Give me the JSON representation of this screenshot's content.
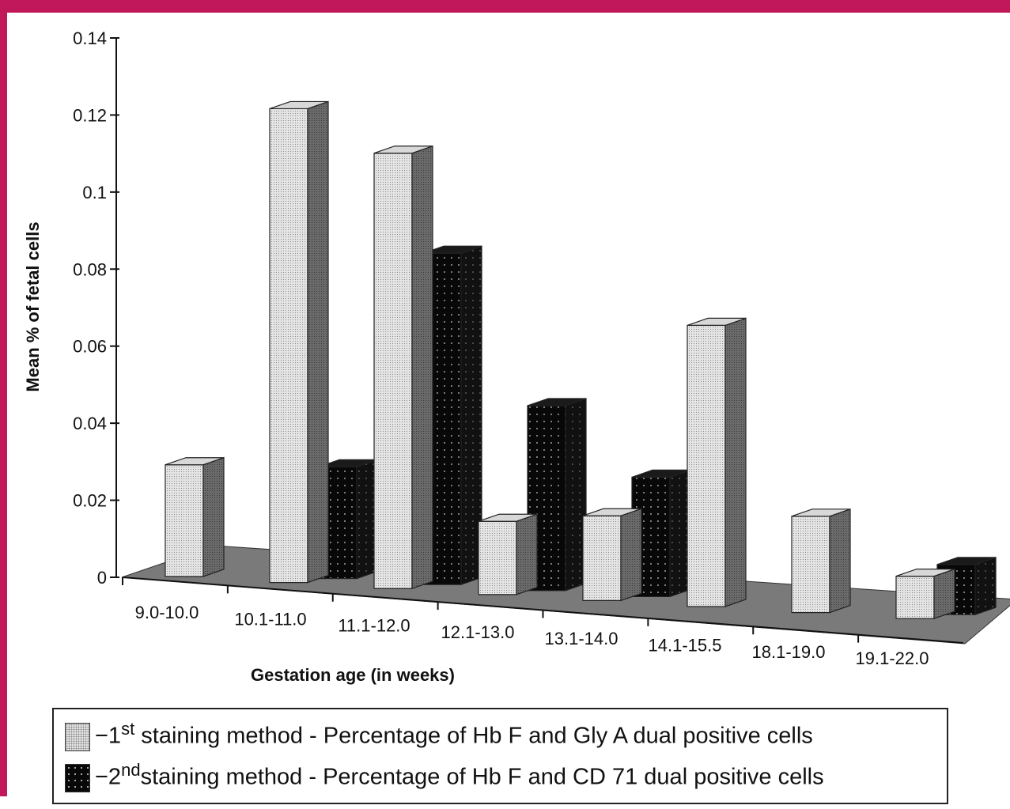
{
  "chart_data": {
    "type": "bar",
    "title": "",
    "xlabel": "Gestation age (in weeks)",
    "ylabel": "Mean % of fetal cells",
    "ylim": [
      0,
      0.14
    ],
    "yticks": [
      "0",
      "0.02",
      "0.04",
      "0.06",
      "0.08",
      "0.1",
      "0.12",
      "0.14"
    ],
    "categories": [
      "9.0-10.0",
      "10.1-11.0",
      "11.1-12.0",
      "12.1-13.0",
      "13.1-14.0",
      "14.1-15.5",
      "18.1-19.0",
      "19.1-22.0"
    ],
    "series": [
      {
        "name": "1st staining method - Percentage of Hb F and Gly A dual positive cells",
        "values": [
          0.029,
          0.123,
          0.113,
          0.019,
          0.022,
          0.073,
          0.025,
          0.011
        ]
      },
      {
        "name": "2nd staining method - Percentage of Hb F and CD 71 dual positive cells",
        "values": [
          0,
          0.029,
          0.086,
          0.048,
          0.031,
          0,
          0,
          0.013
        ]
      }
    ],
    "colors": {
      "series1_face": "#e4e4e4",
      "series1_dot": "#8a8a8a",
      "series2_face": "#080808",
      "series2_dot": "#cfcfcf",
      "floor": "#7a7a7a"
    },
    "legend_position": "bottom"
  },
  "legend": {
    "item1": {
      "prefix": "−1",
      "sup": "st",
      "text": " staining method - Percentage of Hb F and Gly A dual positive cells"
    },
    "item2": {
      "prefix": "−2",
      "sup": "nd",
      "text": "staining method - Percentage of Hb F and CD 71 dual positive cells"
    }
  }
}
